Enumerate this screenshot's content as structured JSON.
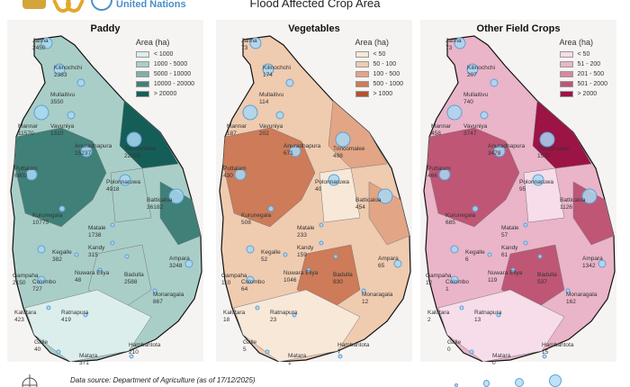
{
  "header": {
    "title": "Flood Affected Crop Area",
    "logos": [
      "government-emblem",
      "wfp-logo",
      "un-logo"
    ],
    "un_text": "United Nations"
  },
  "legend_title": "Area (ha)",
  "panels": [
    {
      "title": "Paddy",
      "legend": [
        {
          "label": "< 1000",
          "color": "#dbeeec"
        },
        {
          "label": "1000 - 5000",
          "color": "#a9cec8"
        },
        {
          "label": "5000 - 10000",
          "color": "#7fb0a9"
        },
        {
          "label": "10000 - 20000",
          "color": "#3f8078"
        },
        {
          "label": "> 20000",
          "color": "#155e58"
        }
      ],
      "districts": [
        {
          "name": "Jaffna",
          "value": "2450"
        },
        {
          "name": "Kilinochchi",
          "value": "2383"
        },
        {
          "name": "Mullaitivu",
          "value": "3550"
        },
        {
          "name": "Mannar",
          "value": "11570"
        },
        {
          "name": "Vavuniya",
          "value": "1310"
        },
        {
          "name": "Anuradhapura",
          "value": "15237"
        },
        {
          "name": "Trincomalee",
          "value": "22155"
        },
        {
          "name": "Puttalam",
          "value": "6803"
        },
        {
          "name": "Polonnaruwa",
          "value": "4918"
        },
        {
          "name": "Batticaloa",
          "value": "36182"
        },
        {
          "name": "Kurunegala",
          "value": "10775"
        },
        {
          "name": "Matale",
          "value": "1738"
        },
        {
          "name": "Kandy",
          "value": "315"
        },
        {
          "name": "Kegalle",
          "value": "382"
        },
        {
          "name": "Ampara",
          "value": "3248"
        },
        {
          "name": "Gampaha",
          "value": "2150"
        },
        {
          "name": "Colombo",
          "value": "727"
        },
        {
          "name": "Nuwara Eliya",
          "value": "48"
        },
        {
          "name": "Badulla",
          "value": "2588"
        },
        {
          "name": "Monaragala",
          "value": "867"
        },
        {
          "name": "Kalutara",
          "value": "423"
        },
        {
          "name": "Ratnapura",
          "value": "419"
        },
        {
          "name": "Galle",
          "value": "40"
        },
        {
          "name": "Hambantota",
          "value": "210"
        },
        {
          "name": "Matara",
          "value": "371"
        }
      ]
    },
    {
      "title": "Vegetables",
      "legend": [
        {
          "label": "< 50",
          "color": "#f7e8d8"
        },
        {
          "label": "50 - 100",
          "color": "#efcbb0"
        },
        {
          "label": "100 - 500",
          "color": "#e2a586"
        },
        {
          "label": "500 - 1000",
          "color": "#cd7b58"
        },
        {
          "label": "> 1000",
          "color": "#b2532f"
        }
      ],
      "districts": [
        {
          "name": "Jaffna",
          "value": "73"
        },
        {
          "name": "Kilinochchi",
          "value": "174"
        },
        {
          "name": "Mullaitivu",
          "value": "114"
        },
        {
          "name": "Mannar",
          "value": "187"
        },
        {
          "name": "Vavuniya",
          "value": "202"
        },
        {
          "name": "Anuradhapura",
          "value": "671"
        },
        {
          "name": "Trincomalee",
          "value": "498"
        },
        {
          "name": "Puttalam",
          "value": "430"
        },
        {
          "name": "Polonnaruwa",
          "value": "40"
        },
        {
          "name": "Batticaloa",
          "value": "454"
        },
        {
          "name": "Kurunegala",
          "value": "508"
        },
        {
          "name": "Matale",
          "value": "233"
        },
        {
          "name": "Kandy",
          "value": "159"
        },
        {
          "name": "Kegalle",
          "value": "52"
        },
        {
          "name": "Ampara",
          "value": "65"
        },
        {
          "name": "Gampaha",
          "value": "110"
        },
        {
          "name": "Colombo",
          "value": "64"
        },
        {
          "name": "Nuwara Eliya",
          "value": "1046"
        },
        {
          "name": "Badulla",
          "value": "930"
        },
        {
          "name": "Monaragala",
          "value": "12"
        },
        {
          "name": "Kalutara",
          "value": "18"
        },
        {
          "name": "Ratnapura",
          "value": "23"
        },
        {
          "name": "Galle",
          "value": "5"
        },
        {
          "name": "Hambantota",
          "value": "7"
        },
        {
          "name": "Matara",
          "value": "1"
        }
      ]
    },
    {
      "title": "Other Field Crops",
      "legend": [
        {
          "label": "< 50",
          "color": "#f7dcea"
        },
        {
          "label": "51 - 200",
          "color": "#eab4c9"
        },
        {
          "label": "201 - 500",
          "color": "#d9879f"
        },
        {
          "label": "501 - 2000",
          "color": "#bf5676"
        },
        {
          "label": "> 2000",
          "color": "#9c1345"
        }
      ],
      "districts": [
        {
          "name": "Jaffna",
          "value": "73"
        },
        {
          "name": "Kilinochchi",
          "value": "207"
        },
        {
          "name": "Mullaitivu",
          "value": "740"
        },
        {
          "name": "Mannar",
          "value": "458"
        },
        {
          "name": "Vavuniya",
          "value": "3747"
        },
        {
          "name": "Anuradhapura",
          "value": "3478"
        },
        {
          "name": "Trincomalee",
          "value": "1522"
        },
        {
          "name": "Puttalam",
          "value": "466"
        },
        {
          "name": "Polonnaruwa",
          "value": "95"
        },
        {
          "name": "Batticaloa",
          "value": "1126"
        },
        {
          "name": "Kurunegala",
          "value": "685"
        },
        {
          "name": "Matale",
          "value": "57"
        },
        {
          "name": "Kandy",
          "value": "61"
        },
        {
          "name": "Kegalle",
          "value": "6"
        },
        {
          "name": "Ampara",
          "value": "1342"
        },
        {
          "name": "Gampaha",
          "value": "12"
        },
        {
          "name": "Colombo",
          "value": "1"
        },
        {
          "name": "Nuwara Eliya",
          "value": "119"
        },
        {
          "name": "Badulla",
          "value": "537"
        },
        {
          "name": "Monaragala",
          "value": "162"
        },
        {
          "name": "Kalutara",
          "value": "2"
        },
        {
          "name": "Ratnapura",
          "value": "13"
        },
        {
          "name": "Galle",
          "value": "0"
        },
        {
          "name": "Hambantota",
          "value": "15"
        },
        {
          "name": "Matara",
          "value": "0"
        }
      ]
    }
  ],
  "footer": {
    "source": "Data source: Department of Agriculture (as of 17/12/2025)",
    "compass": "north-arrow-icon",
    "bubble_size_legend": [
      "xs",
      "s",
      "m",
      "l"
    ]
  }
}
